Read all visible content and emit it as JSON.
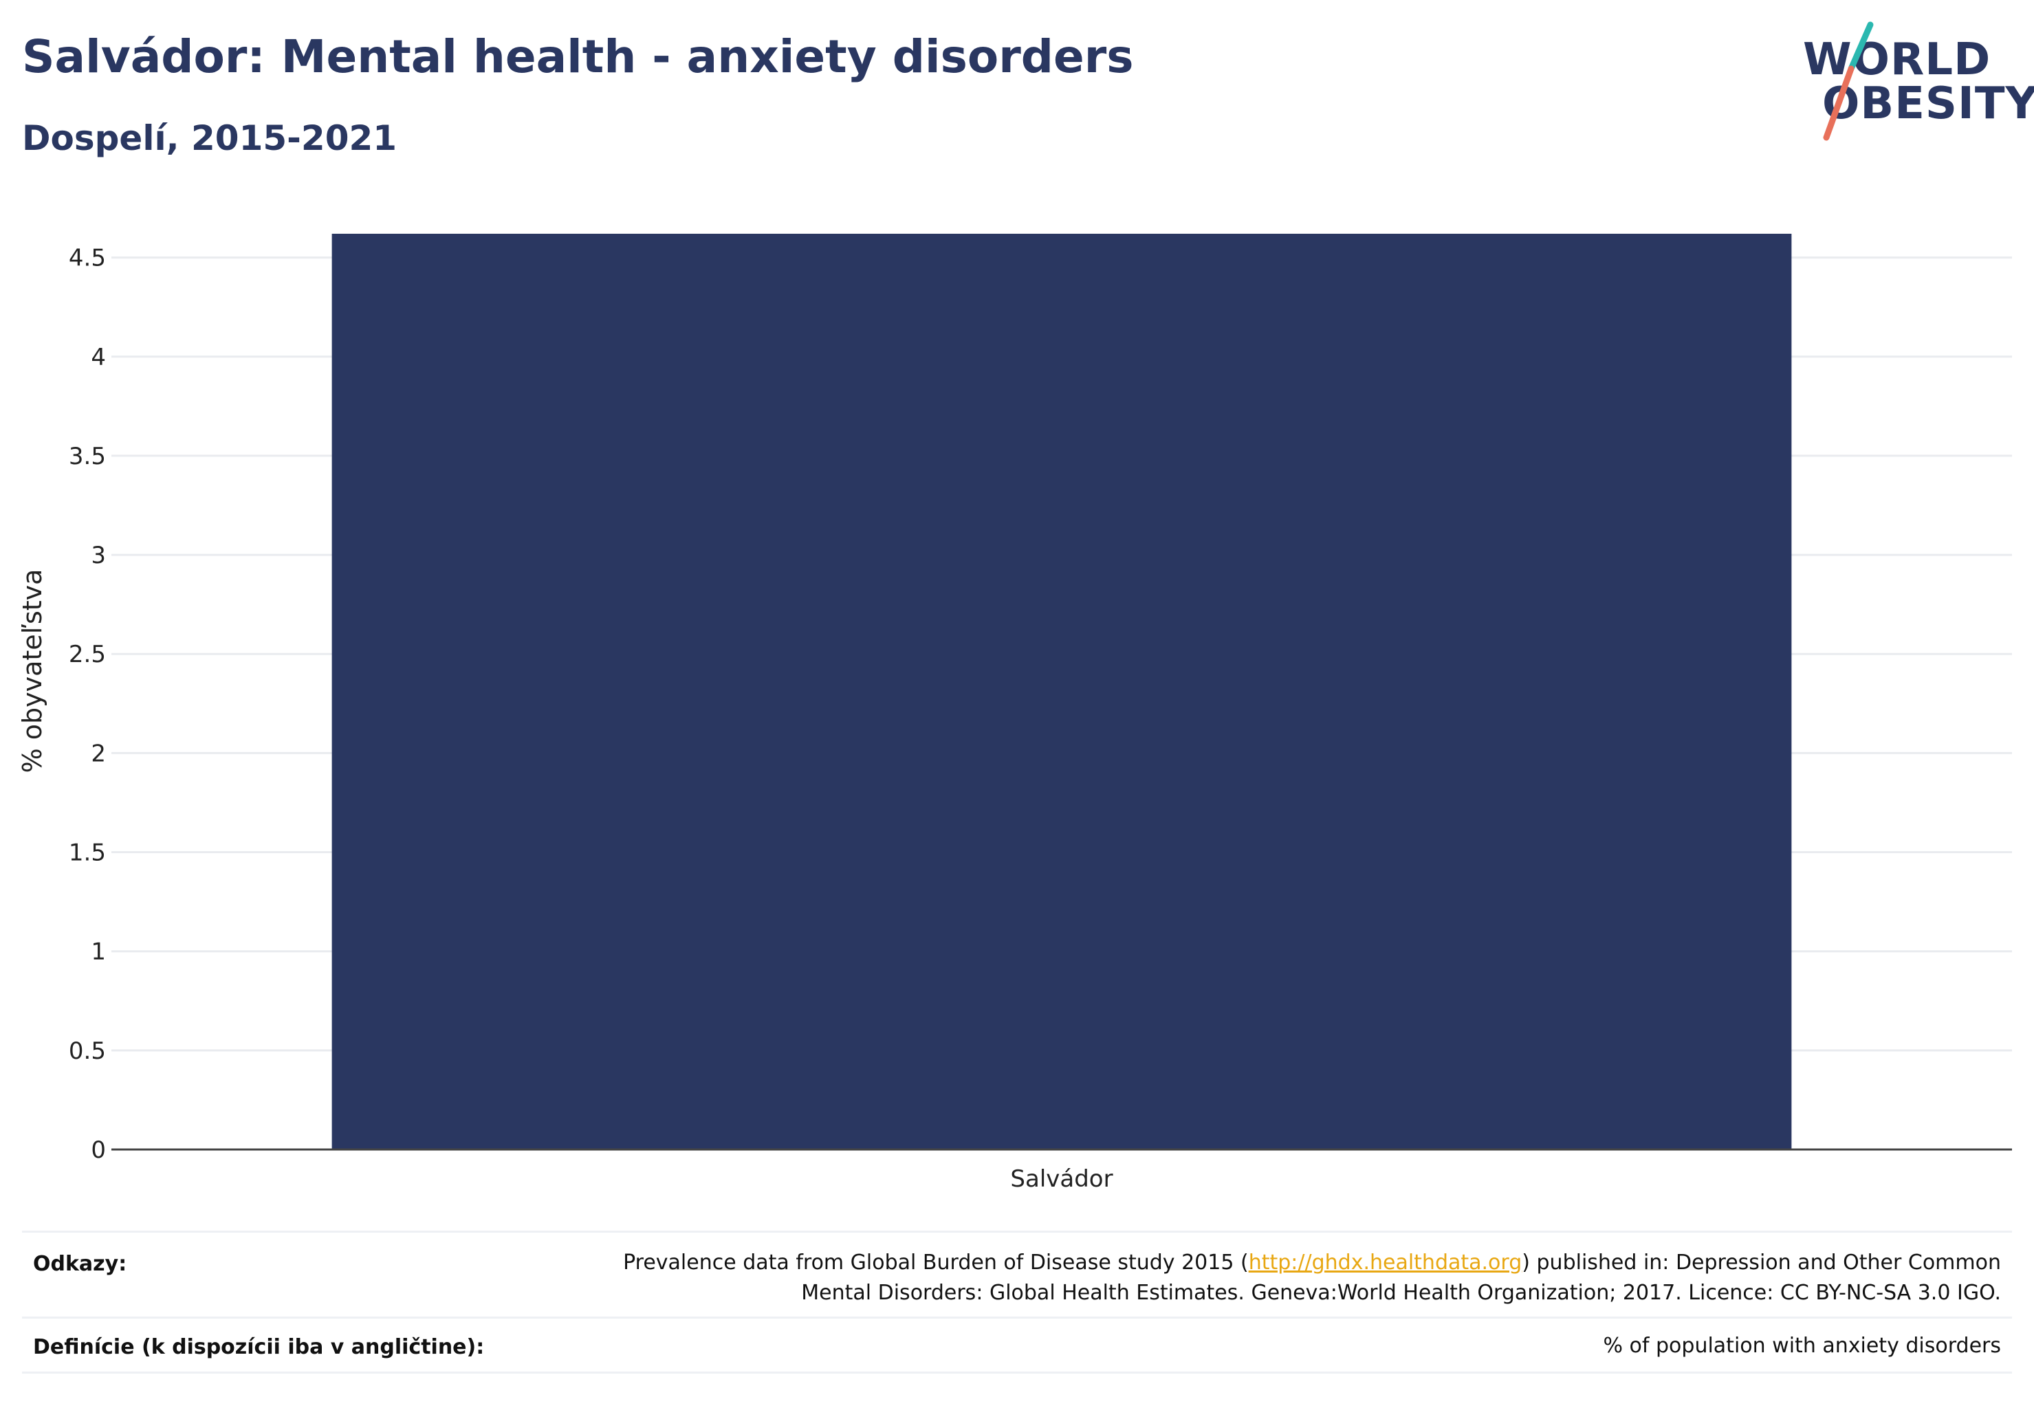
{
  "header": {
    "title": "Salvádor: Mental health - anxiety disorders",
    "subtitle": "Dospelí, 2015-2021"
  },
  "logo": {
    "line1": "WORLD",
    "line2": "OBESITY"
  },
  "colors": {
    "bar": "#2a3761",
    "title": "#2a3761",
    "link": "#e8a712",
    "logo_slash_top": "#2bb8b0",
    "logo_slash_bottom": "#e8705a"
  },
  "chart_data": {
    "type": "bar",
    "categories": [
      "Salvádor"
    ],
    "values": [
      4.62
    ],
    "title": "Salvádor: Mental health - anxiety disorders",
    "subtitle": "Dospelí, 2015-2021",
    "xlabel": "",
    "ylabel": "% obyvateľstva",
    "ylim": [
      0,
      4.62
    ],
    "yticks": [
      "0",
      "0.5",
      "1",
      "1.5",
      "2",
      "2.5",
      "3",
      "3.5",
      "4",
      "4.5"
    ],
    "grid": true,
    "legend": "none"
  },
  "footer": {
    "refs_label": "Odkazy:",
    "refs_text_before": "Prevalence data from Global Burden of Disease study 2015 (",
    "refs_link": "http://ghdx.healthdata.org",
    "refs_text_after": ") published in: Depression and Other Common",
    "refs_text_line2": "Mental Disorders: Global Health Estimates. Geneva:World Health Organization; 2017. Licence: CC BY-NC-SA 3.0 IGO.",
    "def_label": "Definície (k dispozícii iba v angličtine):",
    "def_text": "% of population with anxiety disorders"
  }
}
